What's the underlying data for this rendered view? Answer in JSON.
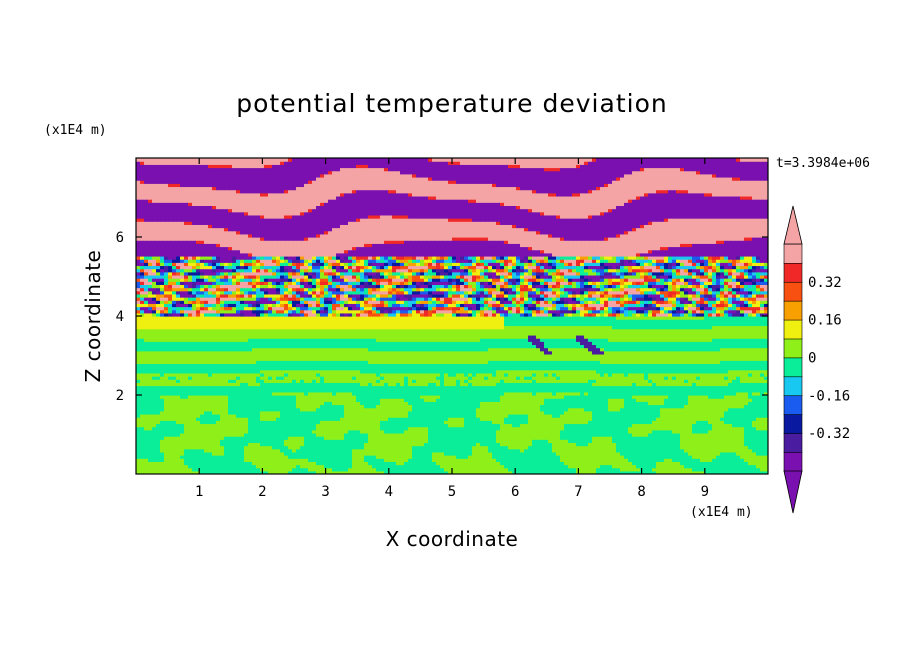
{
  "chart_data": {
    "type": "heatmap",
    "title": "potential temperature deviation",
    "xlabel": "X coordinate",
    "ylabel": "Z coordinate",
    "x_unit": "(x1E4 m)",
    "y_unit": "(x1E4 m)",
    "time_label": "t=3.3984e+06",
    "xlim": [
      0,
      10
    ],
    "ylim": [
      0,
      8
    ],
    "x_ticks": [
      1,
      2,
      3,
      4,
      5,
      6,
      7,
      8,
      9
    ],
    "y_ticks": [
      2,
      4,
      6
    ],
    "colorbar": {
      "levels": [
        -0.48,
        -0.4,
        -0.32,
        -0.24,
        -0.16,
        -0.08,
        0,
        0.08,
        0.16,
        0.24,
        0.32,
        0.4,
        0.48
      ],
      "tick_labels": [
        "0.32",
        "0.16",
        "0",
        "-0.16",
        "-0.32"
      ],
      "tick_values": [
        0.32,
        0.16,
        0,
        -0.16,
        -0.32
      ],
      "colors": [
        "#7a10b0",
        "#4a1ca0",
        "#0a1aa0",
        "#1a5cf0",
        "#18c8f0",
        "#0aee9a",
        "#8ef018",
        "#f0f010",
        "#f8a000",
        "#f85010",
        "#f02828",
        "#f4a4a4"
      ],
      "over_color": "#f4a4a4",
      "under_color": "#7a10b0"
    },
    "bands": [
      {
        "z_range": [
          0,
          2
        ],
        "description": "near zero, green/lime blobs"
      },
      {
        "z_range": [
          2,
          4
        ],
        "description": "near zero, layered lime and green"
      },
      {
        "z_range": [
          4,
          5.5
        ],
        "description": "turbulent mixed deviations"
      },
      {
        "z_range": [
          5.5,
          8
        ],
        "description": "alternating strong positive and negative layers"
      }
    ]
  }
}
